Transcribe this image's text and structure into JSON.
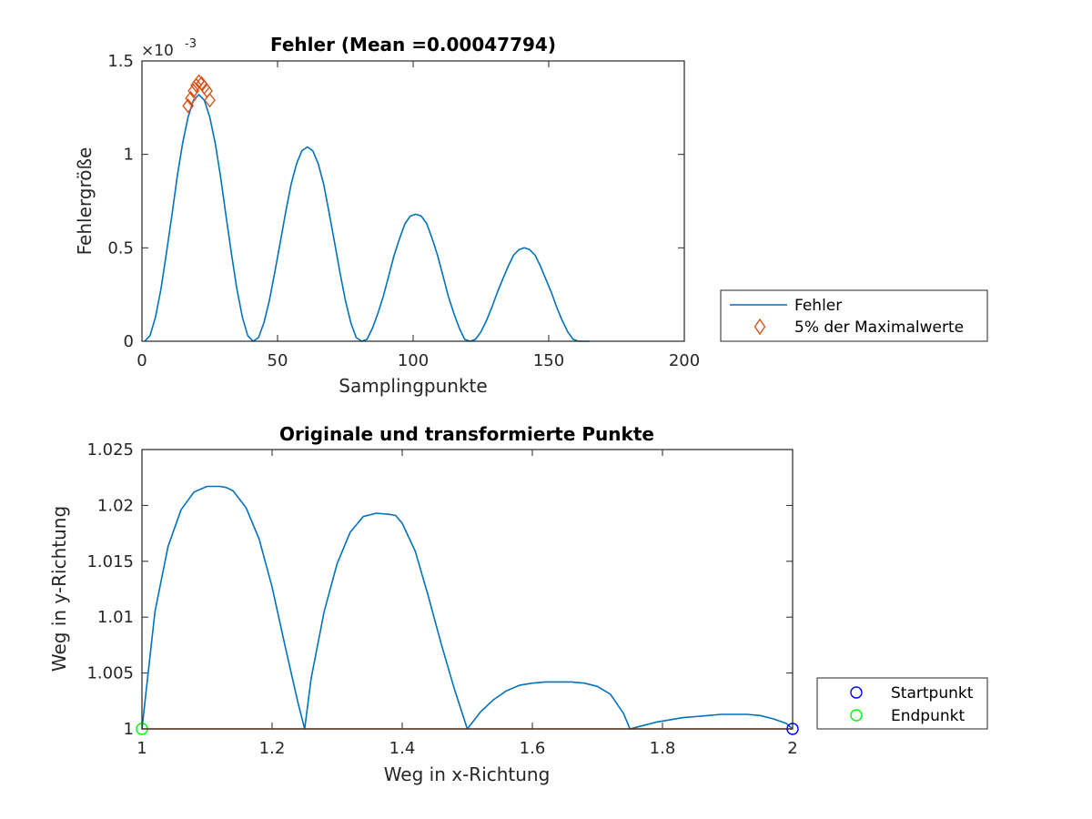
{
  "chart_data": [
    {
      "type": "line",
      "title": "Fehler (Mean =0.00047794)",
      "xlabel": "Samplingpunkte",
      "ylabel": "Fehlergröße",
      "exponent_label": "×10",
      "exponent_power": "-3",
      "xlim": [
        0,
        200
      ],
      "ylim": [
        0,
        1.5
      ],
      "y_scale_factor": 0.001,
      "xticks": [
        0,
        50,
        100,
        150,
        200
      ],
      "xtick_labels": [
        "0",
        "50",
        "100",
        "150",
        "200"
      ],
      "yticks": [
        0,
        0.5,
        1,
        1.5
      ],
      "ytick_labels": [
        "0",
        "0.5",
        "1",
        "1.5"
      ],
      "legend": {
        "placement": "outside-right",
        "entries": [
          "Fehler",
          "5% der Maximalwerte"
        ]
      },
      "series": [
        {
          "name": "Fehler",
          "color": "#0072BD",
          "marker": "none",
          "x": [
            1,
            3,
            5,
            7,
            9,
            11,
            13,
            15,
            17,
            19,
            21,
            23,
            25,
            27,
            29,
            31,
            33,
            35,
            37,
            39,
            41,
            43,
            45,
            47,
            49,
            51,
            53,
            55,
            57,
            59,
            61,
            63,
            65,
            67,
            69,
            71,
            73,
            75,
            77,
            79,
            81,
            83,
            85,
            87,
            89,
            91,
            93,
            95,
            97,
            99,
            101,
            103,
            105,
            107,
            109,
            111,
            113,
            115,
            117,
            119,
            121,
            123,
            125,
            127,
            129,
            131,
            133,
            135,
            137,
            139,
            141,
            143,
            145,
            147,
            149,
            151,
            153,
            155,
            157,
            159,
            161,
            163,
            165
          ],
          "values": [
            0.0,
            0.03,
            0.13,
            0.28,
            0.47,
            0.67,
            0.88,
            1.06,
            1.2,
            1.29,
            1.32,
            1.29,
            1.2,
            1.06,
            0.88,
            0.67,
            0.47,
            0.28,
            0.13,
            0.03,
            0.0,
            0.02,
            0.1,
            0.22,
            0.37,
            0.53,
            0.69,
            0.84,
            0.95,
            1.02,
            1.04,
            1.02,
            0.95,
            0.84,
            0.69,
            0.53,
            0.37,
            0.22,
            0.1,
            0.02,
            0.0,
            0.01,
            0.07,
            0.15,
            0.24,
            0.35,
            0.46,
            0.55,
            0.63,
            0.67,
            0.68,
            0.67,
            0.63,
            0.55,
            0.46,
            0.35,
            0.24,
            0.15,
            0.07,
            0.01,
            0.0,
            0.01,
            0.05,
            0.11,
            0.18,
            0.26,
            0.33,
            0.4,
            0.46,
            0.49,
            0.5,
            0.49,
            0.46,
            0.4,
            0.33,
            0.26,
            0.18,
            0.11,
            0.05,
            0.01,
            0.0,
            0.0,
            0.0
          ]
        },
        {
          "name": "5% der Maximalwerte",
          "color": "#D95319",
          "marker": "diamond",
          "x": [
            17,
            18,
            19,
            20,
            21,
            22,
            23,
            24,
            25
          ],
          "values": [
            1.26,
            1.3,
            1.34,
            1.37,
            1.39,
            1.38,
            1.36,
            1.34,
            1.29
          ]
        }
      ]
    },
    {
      "type": "line",
      "title": "Originale und transformierte Punkte",
      "xlabel": "Weg in x-Richtung",
      "ylabel": "Weg in y-Richtung",
      "xlim": [
        1,
        2
      ],
      "ylim": [
        1,
        1.025
      ],
      "xticks": [
        1,
        1.2,
        1.4,
        1.6,
        1.8,
        2
      ],
      "xtick_labels": [
        "1",
        "1.2",
        "1.4",
        "1.6",
        "1.8",
        "2"
      ],
      "yticks": [
        1,
        1.005,
        1.01,
        1.015,
        1.02,
        1.025
      ],
      "ytick_labels": [
        "1",
        "1.005",
        "1.01",
        "1.015",
        "1.02",
        "1.025"
      ],
      "legend": {
        "placement": "outside-right",
        "entries": [
          "Startpunkt",
          "Endpunkt"
        ]
      },
      "series": [
        {
          "color": "#0072BD",
          "marker": "none",
          "x": [
            1.0,
            1.02,
            1.04,
            1.06,
            1.08,
            1.1,
            1.12,
            1.13,
            1.14,
            1.16,
            1.18,
            1.2,
            1.22,
            1.24,
            1.25,
            1.26,
            1.28,
            1.3,
            1.32,
            1.34,
            1.36,
            1.38,
            1.39,
            1.4,
            1.42,
            1.44,
            1.46,
            1.48,
            1.5,
            1.52,
            1.54,
            1.56,
            1.58,
            1.6,
            1.62,
            1.64,
            1.66,
            1.68,
            1.7,
            1.72,
            1.74,
            1.75,
            1.77,
            1.79,
            1.81,
            1.83,
            1.85,
            1.87,
            1.89,
            1.91,
            1.93,
            1.95,
            1.97,
            1.99,
            2.0
          ],
          "values": [
            1.0,
            1.0105,
            1.0163,
            1.0196,
            1.0212,
            1.0217,
            1.0217,
            1.0216,
            1.0213,
            1.0198,
            1.017,
            1.0127,
            1.0074,
            1.0023,
            1.0,
            1.0045,
            1.0105,
            1.0148,
            1.0176,
            1.019,
            1.0193,
            1.0192,
            1.0191,
            1.0184,
            1.0159,
            1.0119,
            1.0076,
            1.0036,
            1.0,
            1.0015,
            1.0026,
            1.0034,
            1.0039,
            1.0041,
            1.0042,
            1.0042,
            1.0042,
            1.0041,
            1.0038,
            1.0031,
            1.0014,
            1.0,
            1.0003,
            1.0006,
            1.0008,
            1.001,
            1.0011,
            1.0012,
            1.0013,
            1.0013,
            1.0013,
            1.0012,
            1.0009,
            1.0005,
            1.0
          ]
        },
        {
          "color": "#D95319",
          "marker": "none",
          "x": [
            1,
            2
          ],
          "values": [
            1,
            1
          ]
        },
        {
          "name": "Startpunkt",
          "color": "#0000FF",
          "marker": "circle",
          "x": [
            2
          ],
          "values": [
            1
          ]
        },
        {
          "name": "Endpunkt",
          "color": "#00FF00",
          "marker": "circle",
          "x": [
            1
          ],
          "values": [
            1
          ]
        }
      ]
    }
  ]
}
